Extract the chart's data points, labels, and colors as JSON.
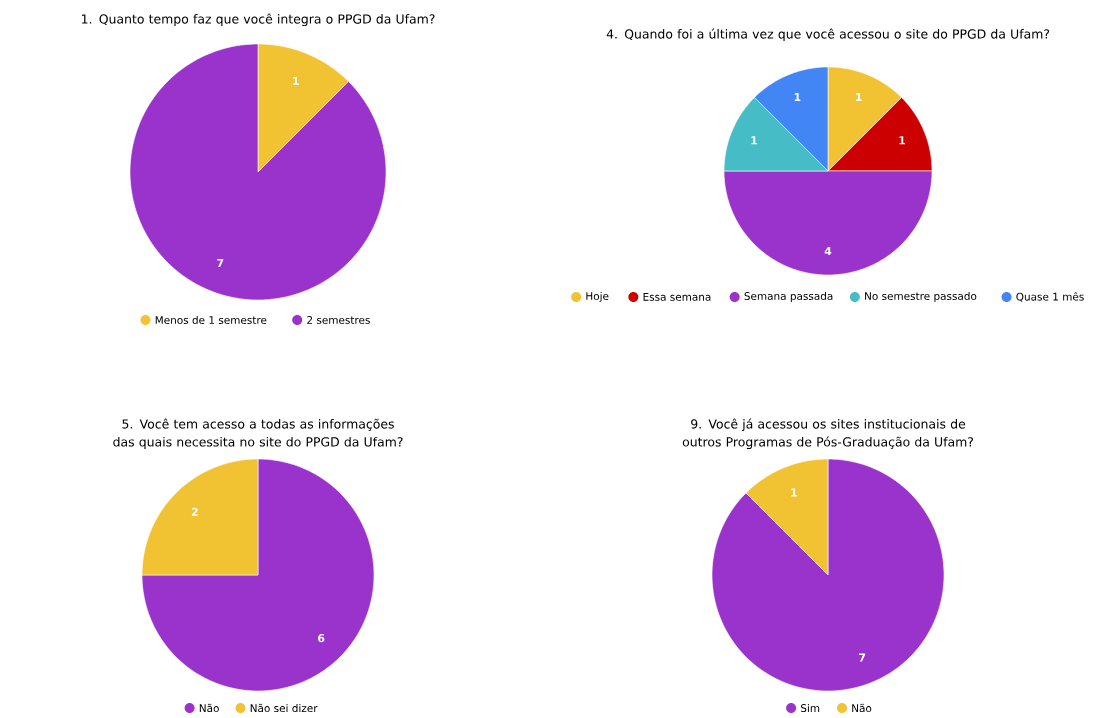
{
  "chart_data": [
    {
      "type": "pie",
      "title": "1. Quanto tempo faz que você integra o PPGD da Ufam?",
      "categories": [
        "Menos de 1 semestre",
        "2 semestres"
      ],
      "values": [
        1,
        7
      ],
      "colors": [
        "#f1c232",
        "#9933cc"
      ],
      "data_labels": true,
      "legend": "bottom"
    },
    {
      "type": "pie",
      "title": "4. Quando foi a última vez que você acessou o site do PPGD da Ufam?",
      "categories": [
        "Hoje",
        "Essa semana",
        "Semana passada",
        "No semestre passado",
        "Quase 1 mês"
      ],
      "values": [
        1,
        1,
        4,
        1,
        1
      ],
      "colors": [
        "#f1c232",
        "#cc0000",
        "#9933cc",
        "#46bdc6",
        "#4285f4"
      ],
      "data_labels": true,
      "legend": "bottom"
    },
    {
      "type": "pie",
      "title": "5. Você tem acesso a todas as informações das quais necessita no site do PPGD da Ufam?",
      "categories": [
        "Não",
        "Não sei dizer"
      ],
      "values": [
        6,
        2
      ],
      "colors": [
        "#9933cc",
        "#f1c232"
      ],
      "data_labels": true,
      "legend": "bottom"
    },
    {
      "type": "pie",
      "title": "9. Você já acessou os sites institucionais de outros Programas de Pós-Graduação da Ufam?",
      "categories": [
        "Sim",
        "Não"
      ],
      "values": [
        7,
        1
      ],
      "colors": [
        "#9933cc",
        "#f1c232"
      ],
      "data_labels": true,
      "legend": "bottom"
    }
  ]
}
